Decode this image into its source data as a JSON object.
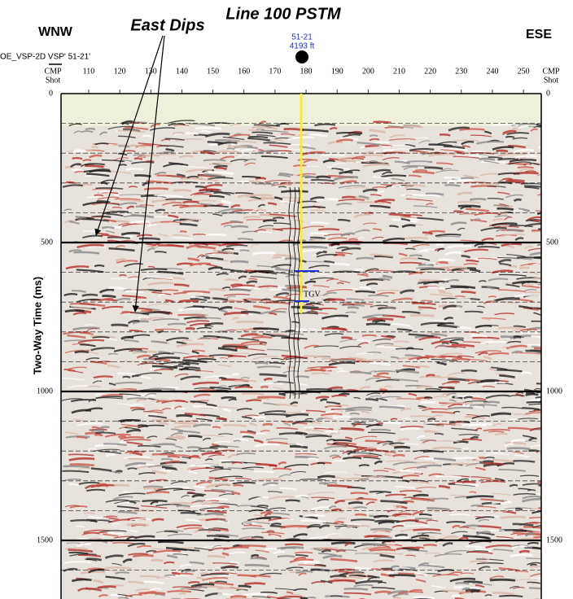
{
  "header": {
    "title": "Line 100 PSTM",
    "annotation": "East Dips",
    "left_direction": "WNW",
    "right_direction": "ESE",
    "line_label": "OE_VSP-2D VSP' 51-21'"
  },
  "axes": {
    "top_label": "CMP",
    "top_sublabel": "Shot",
    "cmp_ticks": [
      110,
      120,
      130,
      140,
      150,
      160,
      170,
      180,
      190,
      200,
      210,
      220,
      230,
      240,
      250
    ],
    "y_label": "Two-Way Time (ms)",
    "time_ticks": [
      0,
      500,
      1000,
      1500
    ]
  },
  "well": {
    "name": "51-21",
    "depth": "4193 ft",
    "marker": "TGV"
  }
}
